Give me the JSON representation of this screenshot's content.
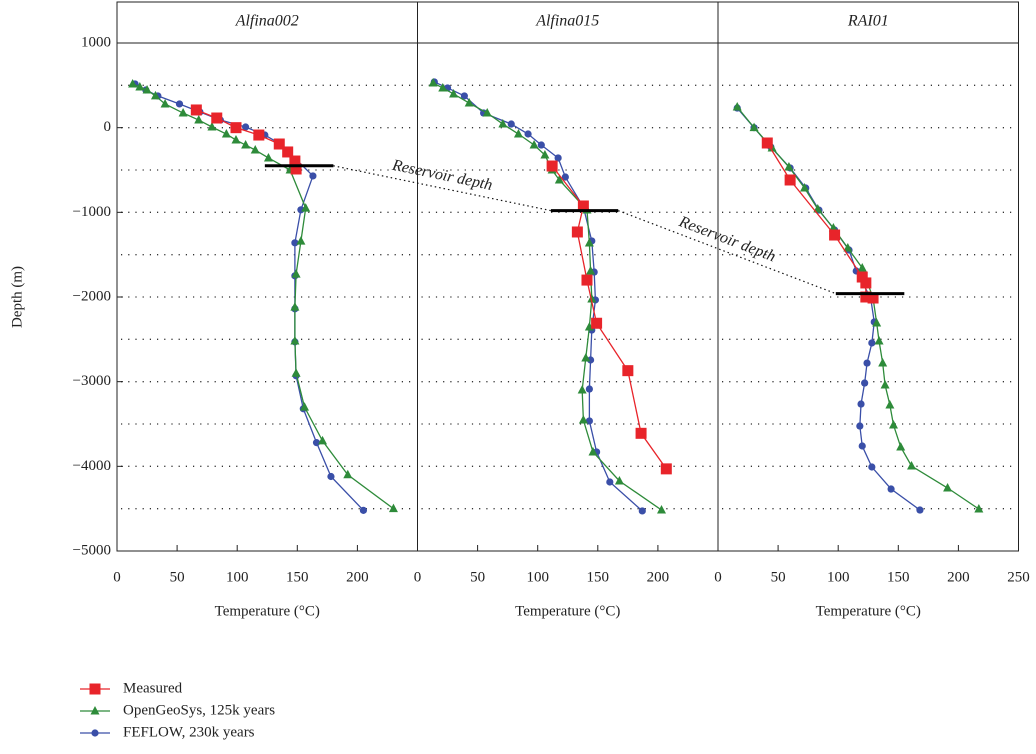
{
  "chart_data": [
    {
      "type": "line",
      "title": "Alfina002",
      "xlabel": "Temperature (°C)",
      "ylabel": "Depth (m)",
      "xlim": [
        0,
        250
      ],
      "xticks": [
        0,
        50,
        100,
        150,
        200
      ],
      "ylim": [
        -5000,
        1000
      ],
      "yticks": [
        {
          "value": -5000,
          "label": "−5000"
        },
        {
          "value": -4000,
          "label": "−4000"
        },
        {
          "value": -3000,
          "label": "−3000"
        },
        {
          "value": -2000,
          "label": "−2000"
        },
        {
          "value": -1000,
          "label": "−1000"
        },
        0,
        1000
      ],
      "ygrid": [
        500,
        0,
        -500,
        -1000,
        -1500,
        -2000,
        -2500,
        -3000,
        -3500,
        -4000,
        -4500
      ],
      "reservoir": {
        "depth": -450,
        "x": [
          123,
          180
        ]
      },
      "annotation": "Reservoir depth",
      "series": [
        {
          "name": "Measured",
          "color": "#e8242a",
          "marker": "square",
          "x": [
            66,
            83,
            99,
            118,
            135,
            142,
            148,
            149
          ],
          "values": [
            209,
            114,
            0,
            -87,
            -193,
            -287,
            -394,
            -488
          ]
        },
        {
          "name": "OpenGeoSys, 125k years",
          "color": "#2e8b3a",
          "marker": "triangle",
          "x": [
            13,
            19,
            25,
            32,
            40,
            55,
            68,
            79,
            91,
            99,
            107,
            115,
            126,
            144,
            157,
            153,
            149,
            148,
            148,
            149,
            156,
            171,
            192,
            230
          ],
          "values": [
            516,
            480,
            445,
            375,
            280,
            173,
            90,
            8,
            -75,
            -146,
            -205,
            -264,
            -358,
            -500,
            -950,
            -1340,
            -1730,
            -2120,
            -2520,
            -2900,
            -3300,
            -3700,
            -4100,
            -4500
          ]
        },
        {
          "name": "FEFLOW, 230k years",
          "color": "#3a4fa8",
          "marker": "pentagon",
          "x": [
            15,
            24,
            34,
            52,
            69,
            86,
            107,
            123,
            136,
            163,
            153,
            148,
            148,
            148,
            148,
            149,
            155,
            166,
            178,
            205
          ],
          "values": [
            516,
            445,
            375,
            280,
            185,
            90,
            8,
            -87,
            -193,
            -570,
            -970,
            -1360,
            -1750,
            -2140,
            -2530,
            -2930,
            -3320,
            -3720,
            -4120,
            -4520
          ]
        }
      ]
    },
    {
      "type": "line",
      "title": "Alfina015",
      "xlabel": "Temperature (°C)",
      "xlim": [
        0,
        250
      ],
      "xticks": [
        0,
        50,
        100,
        150,
        200
      ],
      "ylim": [
        -5000,
        1000
      ],
      "ygrid": [
        500,
        0,
        -500,
        -1000,
        -1500,
        -2000,
        -2500,
        -3000,
        -3500,
        -4000,
        -4500
      ],
      "reservoir": {
        "depth": -980,
        "x": [
          111,
          167
        ]
      },
      "annotation": "Reservoir depth",
      "series": [
        {
          "color": "#e8242a",
          "marker": "square",
          "x": [
            112,
            138,
            133,
            141,
            149,
            175,
            186,
            207
          ],
          "values": [
            -453,
            -925,
            -1232,
            -1800,
            -2310,
            -2870,
            -3610,
            -4030
          ]
        },
        {
          "color": "#2e8b3a",
          "marker": "triangle",
          "x": [
            13,
            21,
            30,
            43,
            58,
            71,
            84,
            97,
            106,
            112,
            118,
            141,
            143,
            144,
            145,
            143,
            140,
            137,
            138,
            146,
            168,
            203
          ],
          "values": [
            528,
            469,
            398,
            291,
            173,
            43,
            -75,
            -205,
            -323,
            -500,
            -618,
            -973,
            -1362,
            -1693,
            -2023,
            -2354,
            -2720,
            -3098,
            -3453,
            -3830,
            -4173,
            -4516
          ]
        },
        {
          "color": "#3a4fa8",
          "marker": "pentagon",
          "x": [
            14,
            25,
            39,
            55,
            78,
            92,
            103,
            117,
            123,
            138,
            145,
            147,
            148,
            145,
            144,
            143,
            143,
            149,
            160,
            187
          ],
          "values": [
            540,
            469,
            375,
            173,
            43,
            -75,
            -205,
            -358,
            -583,
            -937,
            -1338,
            -1705,
            -2035,
            -2390,
            -2744,
            -3087,
            -3464,
            -3830,
            -4185,
            -4527
          ]
        }
      ]
    },
    {
      "type": "line",
      "title": "RAI01",
      "xlabel": "Temperature (°C)",
      "xlim": [
        0,
        250
      ],
      "xticks": [
        0,
        50,
        100,
        150,
        200,
        250
      ],
      "ylim": [
        -5000,
        1000
      ],
      "ygrid": [
        500,
        0,
        -500,
        -1000,
        -1500,
        -2000,
        -2500,
        -3000,
        -3500,
        -4000,
        -4500
      ],
      "reservoir": {
        "depth": -1960,
        "x": [
          98,
          155
        ]
      },
      "series": [
        {
          "color": "#e8242a",
          "marker": "square",
          "x": [
            41,
            60,
            97,
            120,
            123,
            123,
            129
          ],
          "values": [
            -181,
            -618,
            -1268,
            -1764,
            -1834,
            -2000,
            -2012
          ]
        },
        {
          "color": "#2e8b3a",
          "marker": "triangle",
          "x": [
            16,
            30,
            45,
            59,
            72,
            83,
            96,
            108,
            120,
            129,
            132,
            134,
            137,
            139,
            143,
            146,
            152,
            161,
            191,
            217
          ],
          "values": [
            244,
            0,
            -240,
            -465,
            -713,
            -961,
            -1185,
            -1421,
            -1657,
            -2012,
            -2307,
            -2520,
            -2780,
            -3039,
            -3275,
            -3512,
            -3771,
            -3996,
            -4256,
            -4504
          ]
        },
        {
          "color": "#3a4fa8",
          "marker": "pentagon",
          "x": [
            16,
            30,
            44,
            60,
            73,
            84,
            97,
            109,
            115,
            127,
            130,
            128,
            124,
            122,
            119,
            118,
            120,
            128,
            144,
            168
          ],
          "values": [
            232,
            0,
            -229,
            -476,
            -713,
            -973,
            -1209,
            -1445,
            -1693,
            -2012,
            -2295,
            -2543,
            -2780,
            -3016,
            -3264,
            -3524,
            -3760,
            -4008,
            -4268,
            -4516
          ]
        }
      ]
    }
  ]
}
